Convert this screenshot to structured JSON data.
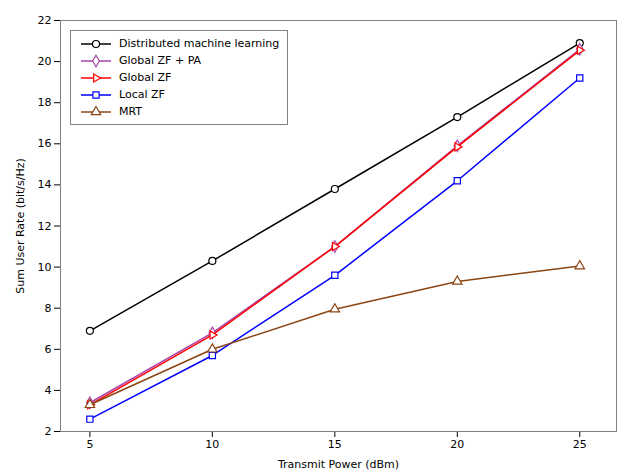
{
  "chart_data": {
    "type": "line",
    "x": [
      5,
      10,
      15,
      20,
      25
    ],
    "series": [
      {
        "name": "Distributed machine learning",
        "color": "#000000",
        "marker": "circle",
        "values": [
          6.9,
          10.3,
          13.8,
          17.3,
          20.9
        ]
      },
      {
        "name": "Global ZF + PA",
        "color": "#AA44AA",
        "marker": "diamond",
        "values": [
          3.4,
          6.8,
          11.0,
          15.9,
          20.6
        ]
      },
      {
        "name": "Global ZF",
        "color": "#FF0000",
        "marker": "triangle-right",
        "values": [
          3.3,
          6.7,
          11.0,
          15.85,
          20.55
        ]
      },
      {
        "name": "Local ZF",
        "color": "#0000FF",
        "marker": "square",
        "values": [
          2.6,
          5.7,
          9.6,
          14.2,
          19.2
        ]
      },
      {
        "name": "MRT",
        "color": "#8B4513",
        "marker": "triangle",
        "values": [
          3.3,
          6.0,
          7.95,
          9.3,
          10.05
        ]
      }
    ],
    "xlabel": "Transmit Power (dBm)",
    "ylabel": "Sum User Rate (bit/s/Hz)",
    "xlim": [
      3.8,
      26.5
    ],
    "ylim": [
      2,
      22
    ],
    "xticks": [
      5,
      10,
      15,
      20,
      25
    ],
    "yticks": [
      2,
      4,
      6,
      8,
      10,
      12,
      14,
      16,
      18,
      20,
      22
    ],
    "legend": "upper left",
    "grid": false
  }
}
